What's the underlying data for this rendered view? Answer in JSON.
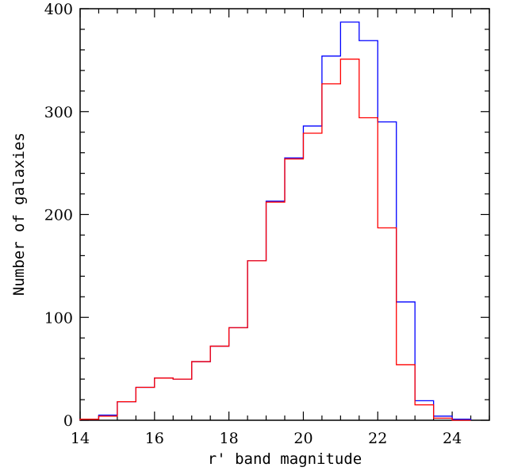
{
  "chart_data": {
    "type": "histogram",
    "title": "",
    "xlabel": "r' band magnitude",
    "ylabel": "Number of galaxies",
    "xlim": [
      14,
      25
    ],
    "ylim": [
      0,
      400
    ],
    "xticks": [
      14,
      16,
      18,
      20,
      22,
      24
    ],
    "yticks": [
      0,
      100,
      200,
      300,
      400
    ],
    "grid": false,
    "legend": "none",
    "bin_edges": [
      14,
      14.5,
      15,
      15.5,
      16,
      16.5,
      17,
      17.5,
      18,
      18.5,
      19,
      19.5,
      20,
      20.5,
      21,
      21.5,
      22,
      22.5,
      23,
      23.5,
      24,
      24.5
    ],
    "series": [
      {
        "color": "#0000ff",
        "values": [
          1,
          5,
          18,
          32,
          41,
          40,
          57,
          72,
          90,
          155,
          213,
          255,
          286,
          354,
          387,
          369,
          290,
          115,
          19,
          4,
          1
        ]
      },
      {
        "color": "#ff0000",
        "values": [
          1,
          4,
          18,
          32,
          41,
          40,
          57,
          72,
          90,
          155,
          212,
          254,
          279,
          327,
          351,
          294,
          187,
          54,
          15,
          2,
          0
        ]
      }
    ]
  }
}
